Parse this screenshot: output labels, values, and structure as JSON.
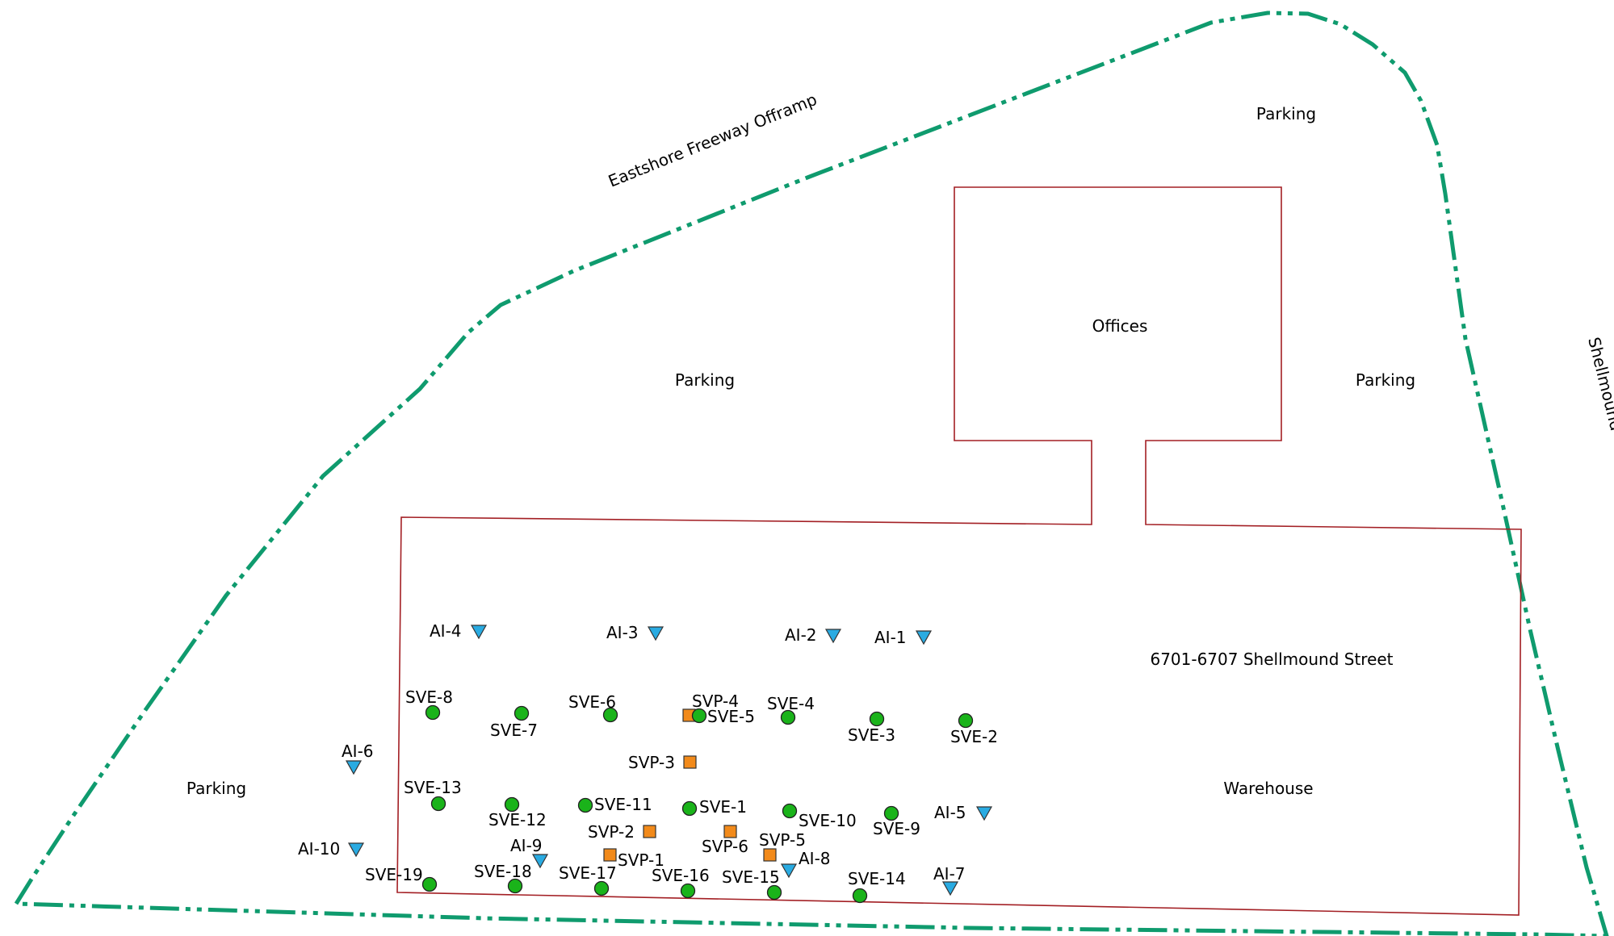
{
  "map": {
    "area_labels": {
      "freeway": "Eastshore Freeway Offramp",
      "street_side": "Shellmound",
      "parking_top_right": "Parking",
      "parking_center": "Parking",
      "parking_right": "Parking",
      "parking_left": "Parking",
      "offices": "Offices",
      "address": "6701-6707 Shellmound Street",
      "warehouse": "Warehouse"
    },
    "colors": {
      "boundary": "#0f9b6e",
      "building_outline": "#a31f24",
      "sve_fill": "#1ab31a",
      "svp_fill": "#f28a1a",
      "ai_fill": "#29abe2"
    },
    "symbols": {
      "sve": "green-circle",
      "svp": "orange-square",
      "ai": "blue-down-triangle"
    },
    "points": {
      "ai1": "AI-1",
      "ai2": "AI-2",
      "ai3": "AI-3",
      "ai4": "AI-4",
      "ai5": "AI-5",
      "ai6": "AI-6",
      "ai7": "AI-7",
      "ai8": "AI-8",
      "ai9": "AI-9",
      "ai10": "AI-10",
      "sve1": "SVE-1",
      "sve2": "SVE-2",
      "sve3": "SVE-3",
      "sve4": "SVE-4",
      "sve5": "SVE-5",
      "sve6": "SVE-6",
      "sve7": "SVE-7",
      "sve8": "SVE-8",
      "sve9": "SVE-9",
      "sve10": "SVE-10",
      "sve11": "SVE-11",
      "sve12": "SVE-12",
      "sve13": "SVE-13",
      "sve14": "SVE-14",
      "sve15": "SVE-15",
      "sve16": "SVE-16",
      "sve17": "SVE-17",
      "sve18": "SVE-18",
      "sve19": "SVE-19",
      "svp1": "SVP-1",
      "svp2": "SVP-2",
      "svp3": "SVP-3",
      "svp4": "SVP-4",
      "svp5": "SVP-5",
      "svp6": "SVP-6"
    }
  }
}
